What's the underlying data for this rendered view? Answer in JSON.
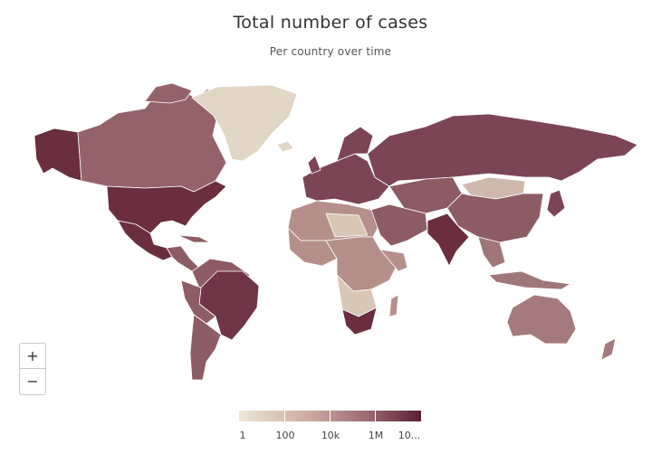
{
  "title": "Total number of cases",
  "subtitle": "Per country over time",
  "zoom": {
    "in_label": "+",
    "out_label": "−"
  },
  "legend": {
    "labels": [
      "1",
      "100",
      "10k",
      "1M",
      "10..."
    ],
    "colors": {
      "low": "#efe6d6",
      "mid": "#9c6b73",
      "high": "#5b1f35"
    }
  },
  "colors": {
    "usa": "#6a2e3f",
    "canada": "#94636a",
    "alaska": "#6a2e3f",
    "greenland": "#e2d6c6",
    "russia": "#7b4555",
    "china": "#8c5b63",
    "brazil": "#6f3446",
    "south_america": "#8e5c64",
    "africa_light": "#d9c7b5",
    "africa_mid": "#b58f8a",
    "europe": "#7b4555",
    "india": "#6a2e3f",
    "australia": "#a47a7c",
    "mongolia": "#cfb9ad",
    "middle_east": "#8c5b63",
    "southeast_asia": "#a07779",
    "border": "#ffffff"
  }
}
